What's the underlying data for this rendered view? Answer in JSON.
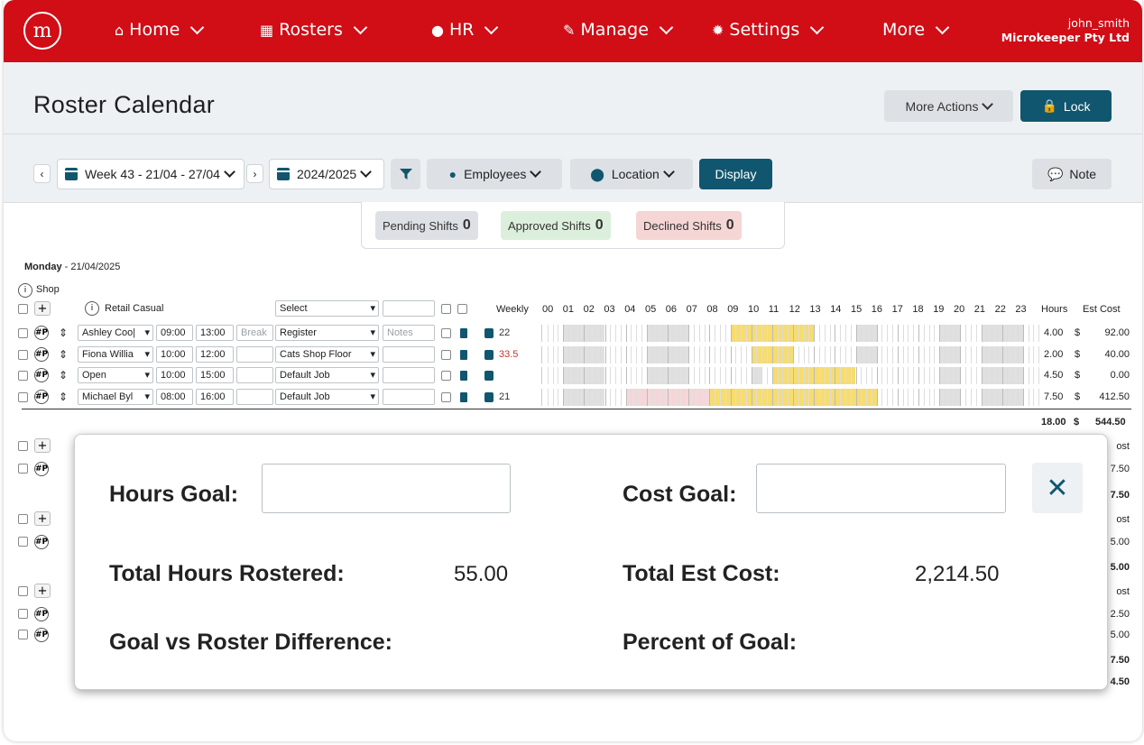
{
  "nav": {
    "logo": "m",
    "items": [
      {
        "label": "Home",
        "icon": "home-icon"
      },
      {
        "label": "Rosters",
        "icon": "calendar-icon"
      },
      {
        "label": "HR",
        "icon": "user-icon"
      },
      {
        "label": "Manage",
        "icon": "wrench-icon"
      },
      {
        "label": "Settings",
        "icon": "gear-icon"
      },
      {
        "label": "More",
        "icon": ""
      }
    ],
    "user": "john_smith",
    "company": "Microkeeper Pty Ltd"
  },
  "header": {
    "title": "Roster Calendar",
    "more_actions": "More Actions",
    "lock": "Lock"
  },
  "toolbar": {
    "week": "Week 43 - 21/04 - 27/04",
    "year": "2024/2025",
    "employees": "Employees",
    "location": "Location",
    "display": "Display",
    "note": "Note"
  },
  "status": {
    "pending_label": "Pending Shifts",
    "pending_count": "0",
    "approved_label": "Approved Shifts",
    "approved_count": "0",
    "declined_label": "Declined Shifts",
    "declined_count": "0"
  },
  "roster": {
    "day": "Monday",
    "date": " - 21/04/2025",
    "location": "Shop",
    "group": "Retail Casual",
    "select_placeholder": "Select",
    "weekly_label": "Weekly",
    "hours_header": "Hours",
    "cost_header": "Est Cost",
    "hours_cols": [
      "00",
      "01",
      "02",
      "03",
      "04",
      "05",
      "06",
      "07",
      "08",
      "09",
      "10",
      "11",
      "12",
      "13",
      "14",
      "15",
      "16",
      "17",
      "18",
      "19",
      "20",
      "21",
      "22",
      "23"
    ],
    "rows": [
      {
        "name": "Ashley Coo|",
        "start": "09:00",
        "end": "13:00",
        "break": "Break",
        "job": "Register",
        "notes": "Notes",
        "weekly": "22",
        "weekly_color": "#333333",
        "hours": "4.00",
        "currency": "$",
        "cost": "92.00"
      },
      {
        "name": "Fiona Willia",
        "start": "10:00",
        "end": "12:00",
        "break": "",
        "job": "Cats Shop Floor",
        "notes": "",
        "weekly": "33.5",
        "weekly_color": "#c0392b",
        "hours": "2.00",
        "currency": "$",
        "cost": "40.00"
      },
      {
        "name": "Open",
        "start": "10:00",
        "end": "15:00",
        "break": "",
        "job": "Default Job",
        "notes": "",
        "weekly": "",
        "weekly_color": "#333333",
        "hours": "4.50",
        "currency": "$",
        "cost": "0.00"
      },
      {
        "name": "Michael Byl",
        "start": "08:00",
        "end": "16:00",
        "break": "",
        "job": "Default Job",
        "notes": "",
        "weekly": "21",
        "weekly_color": "#333333",
        "hours": "7.50",
        "currency": "$",
        "cost": "412.50"
      }
    ],
    "total_hours": "18.00",
    "total_currency": "$",
    "total_cost": "544.50",
    "peek_right": [
      "ost",
      "7.50",
      "7.50",
      "ost",
      "5.00",
      "5.00",
      "ost",
      "2.50",
      "5.00",
      "7.50",
      "4.50"
    ]
  },
  "modal": {
    "hours_goal_label": "Hours Goal:",
    "cost_goal_label": "Cost Goal:",
    "total_hours_label": "Total Hours Rostered:",
    "total_hours_value": "55.00",
    "total_cost_label": "Total Est Cost:",
    "total_cost_value": "2,214.50",
    "diff_label": "Goal vs Roster Difference:",
    "percent_label": "Percent of Goal:",
    "close": "✕"
  }
}
